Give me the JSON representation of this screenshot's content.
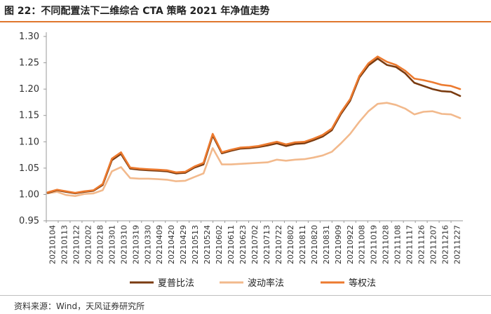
{
  "title": "图 22：不同配置法下二维综合 CTA 策略 2021 年净值走势",
  "source": "资料来源：Wind，天风证券研究所",
  "colors": {
    "accent": "#e0762d",
    "series": [
      "#7a3b10",
      "#f2b98c",
      "#ec7a2f"
    ]
  },
  "chart_data": {
    "type": "line",
    "title": "",
    "xlabel": "",
    "ylabel": "",
    "ylim": [
      0.95,
      1.3
    ],
    "yticks": [
      "0.95",
      "1.00",
      "1.05",
      "1.10",
      "1.15",
      "1.20",
      "1.25",
      "1.30"
    ],
    "grid": false,
    "legend_position": "bottom",
    "x_tick_labels": [
      "20210104",
      "20210113",
      "20210122",
      "20210202",
      "20210218",
      "20210301",
      "20210310",
      "20210319",
      "20210330",
      "20210409",
      "20210420",
      "20210429",
      "20210513",
      "20210524",
      "20210602",
      "20210611",
      "20210623",
      "20210702",
      "20210713",
      "20210722",
      "20210802",
      "20210811",
      "20210820",
      "20210831",
      "20210909",
      "20210922",
      "20211008",
      "20211019",
      "20211028",
      "20211108",
      "20211117",
      "20211126",
      "20211207",
      "20211216",
      "20211227"
    ],
    "series": [
      {
        "name": "夏普比法",
        "color": "#7a3b10",
        "values": [
          1.003,
          1.008,
          1.005,
          1.002,
          1.005,
          1.007,
          1.018,
          1.065,
          1.077,
          1.049,
          1.047,
          1.046,
          1.045,
          1.044,
          1.04,
          1.041,
          1.051,
          1.057,
          1.112,
          1.078,
          1.083,
          1.087,
          1.088,
          1.09,
          1.093,
          1.097,
          1.092,
          1.096,
          1.097,
          1.103,
          1.11,
          1.122,
          1.153,
          1.178,
          1.222,
          1.245,
          1.258,
          1.246,
          1.242,
          1.23,
          1.212,
          1.206,
          1.2,
          1.196,
          1.195,
          1.187
        ]
      },
      {
        "name": "波动率法",
        "color": "#f2b98c",
        "values": [
          1.002,
          1.005,
          0.999,
          0.997,
          1.001,
          1.002,
          1.008,
          1.044,
          1.052,
          1.031,
          1.03,
          1.03,
          1.029,
          1.028,
          1.025,
          1.026,
          1.033,
          1.04,
          1.088,
          1.057,
          1.057,
          1.058,
          1.059,
          1.06,
          1.061,
          1.066,
          1.064,
          1.066,
          1.067,
          1.07,
          1.074,
          1.081,
          1.097,
          1.115,
          1.138,
          1.158,
          1.172,
          1.174,
          1.17,
          1.163,
          1.152,
          1.157,
          1.158,
          1.153,
          1.152,
          1.145
        ]
      },
      {
        "name": "等权法",
        "color": "#ec7a2f",
        "values": [
          1.004,
          1.009,
          1.006,
          1.003,
          1.006,
          1.008,
          1.02,
          1.068,
          1.08,
          1.051,
          1.049,
          1.048,
          1.047,
          1.046,
          1.042,
          1.043,
          1.053,
          1.06,
          1.115,
          1.08,
          1.085,
          1.089,
          1.09,
          1.092,
          1.096,
          1.1,
          1.095,
          1.099,
          1.1,
          1.106,
          1.113,
          1.125,
          1.156,
          1.181,
          1.225,
          1.249,
          1.262,
          1.252,
          1.246,
          1.235,
          1.22,
          1.217,
          1.213,
          1.208,
          1.206,
          1.2
        ]
      }
    ]
  }
}
